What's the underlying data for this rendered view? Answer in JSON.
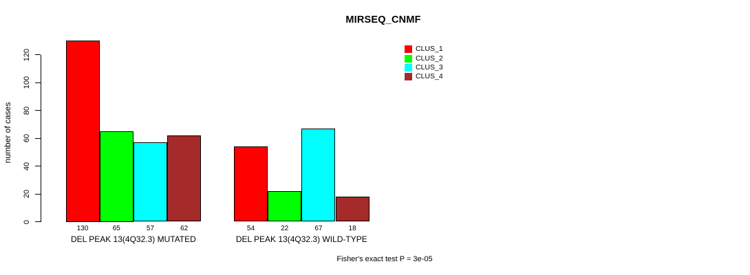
{
  "colors": {
    "background": "#FFFFFF",
    "text": "#000000",
    "bar_border": "#000000",
    "clus1": "#FF0000",
    "clus2": "#00FF00",
    "clus3": "#00FFFF",
    "clus4": "#A52A2A"
  },
  "chart_data": {
    "type": "bar",
    "title": "MIRSEQ_CNMF",
    "xlabel": "",
    "ylabel": "number of cases",
    "ylim": [
      0,
      120
    ],
    "yticks": [
      0,
      20,
      40,
      60,
      80,
      100,
      120
    ],
    "grid": false,
    "legend_position": "top-right",
    "value_labels_shown": true,
    "categories": [
      "DEL PEAK 13(4Q32.3) MUTATED",
      "DEL PEAK 13(4Q32.3) WILD-TYPE"
    ],
    "series": [
      {
        "name": "CLUS_1",
        "color": "#FF0000",
        "values": [
          130,
          54
        ]
      },
      {
        "name": "CLUS_2",
        "color": "#00FF00",
        "values": [
          65,
          22
        ]
      },
      {
        "name": "CLUS_3",
        "color": "#00FFFF",
        "values": [
          57,
          67
        ]
      },
      {
        "name": "CLUS_4",
        "color": "#A52A2A",
        "values": [
          62,
          18
        ]
      }
    ],
    "annotation": "Fisher's exact test P = 3e-05"
  }
}
